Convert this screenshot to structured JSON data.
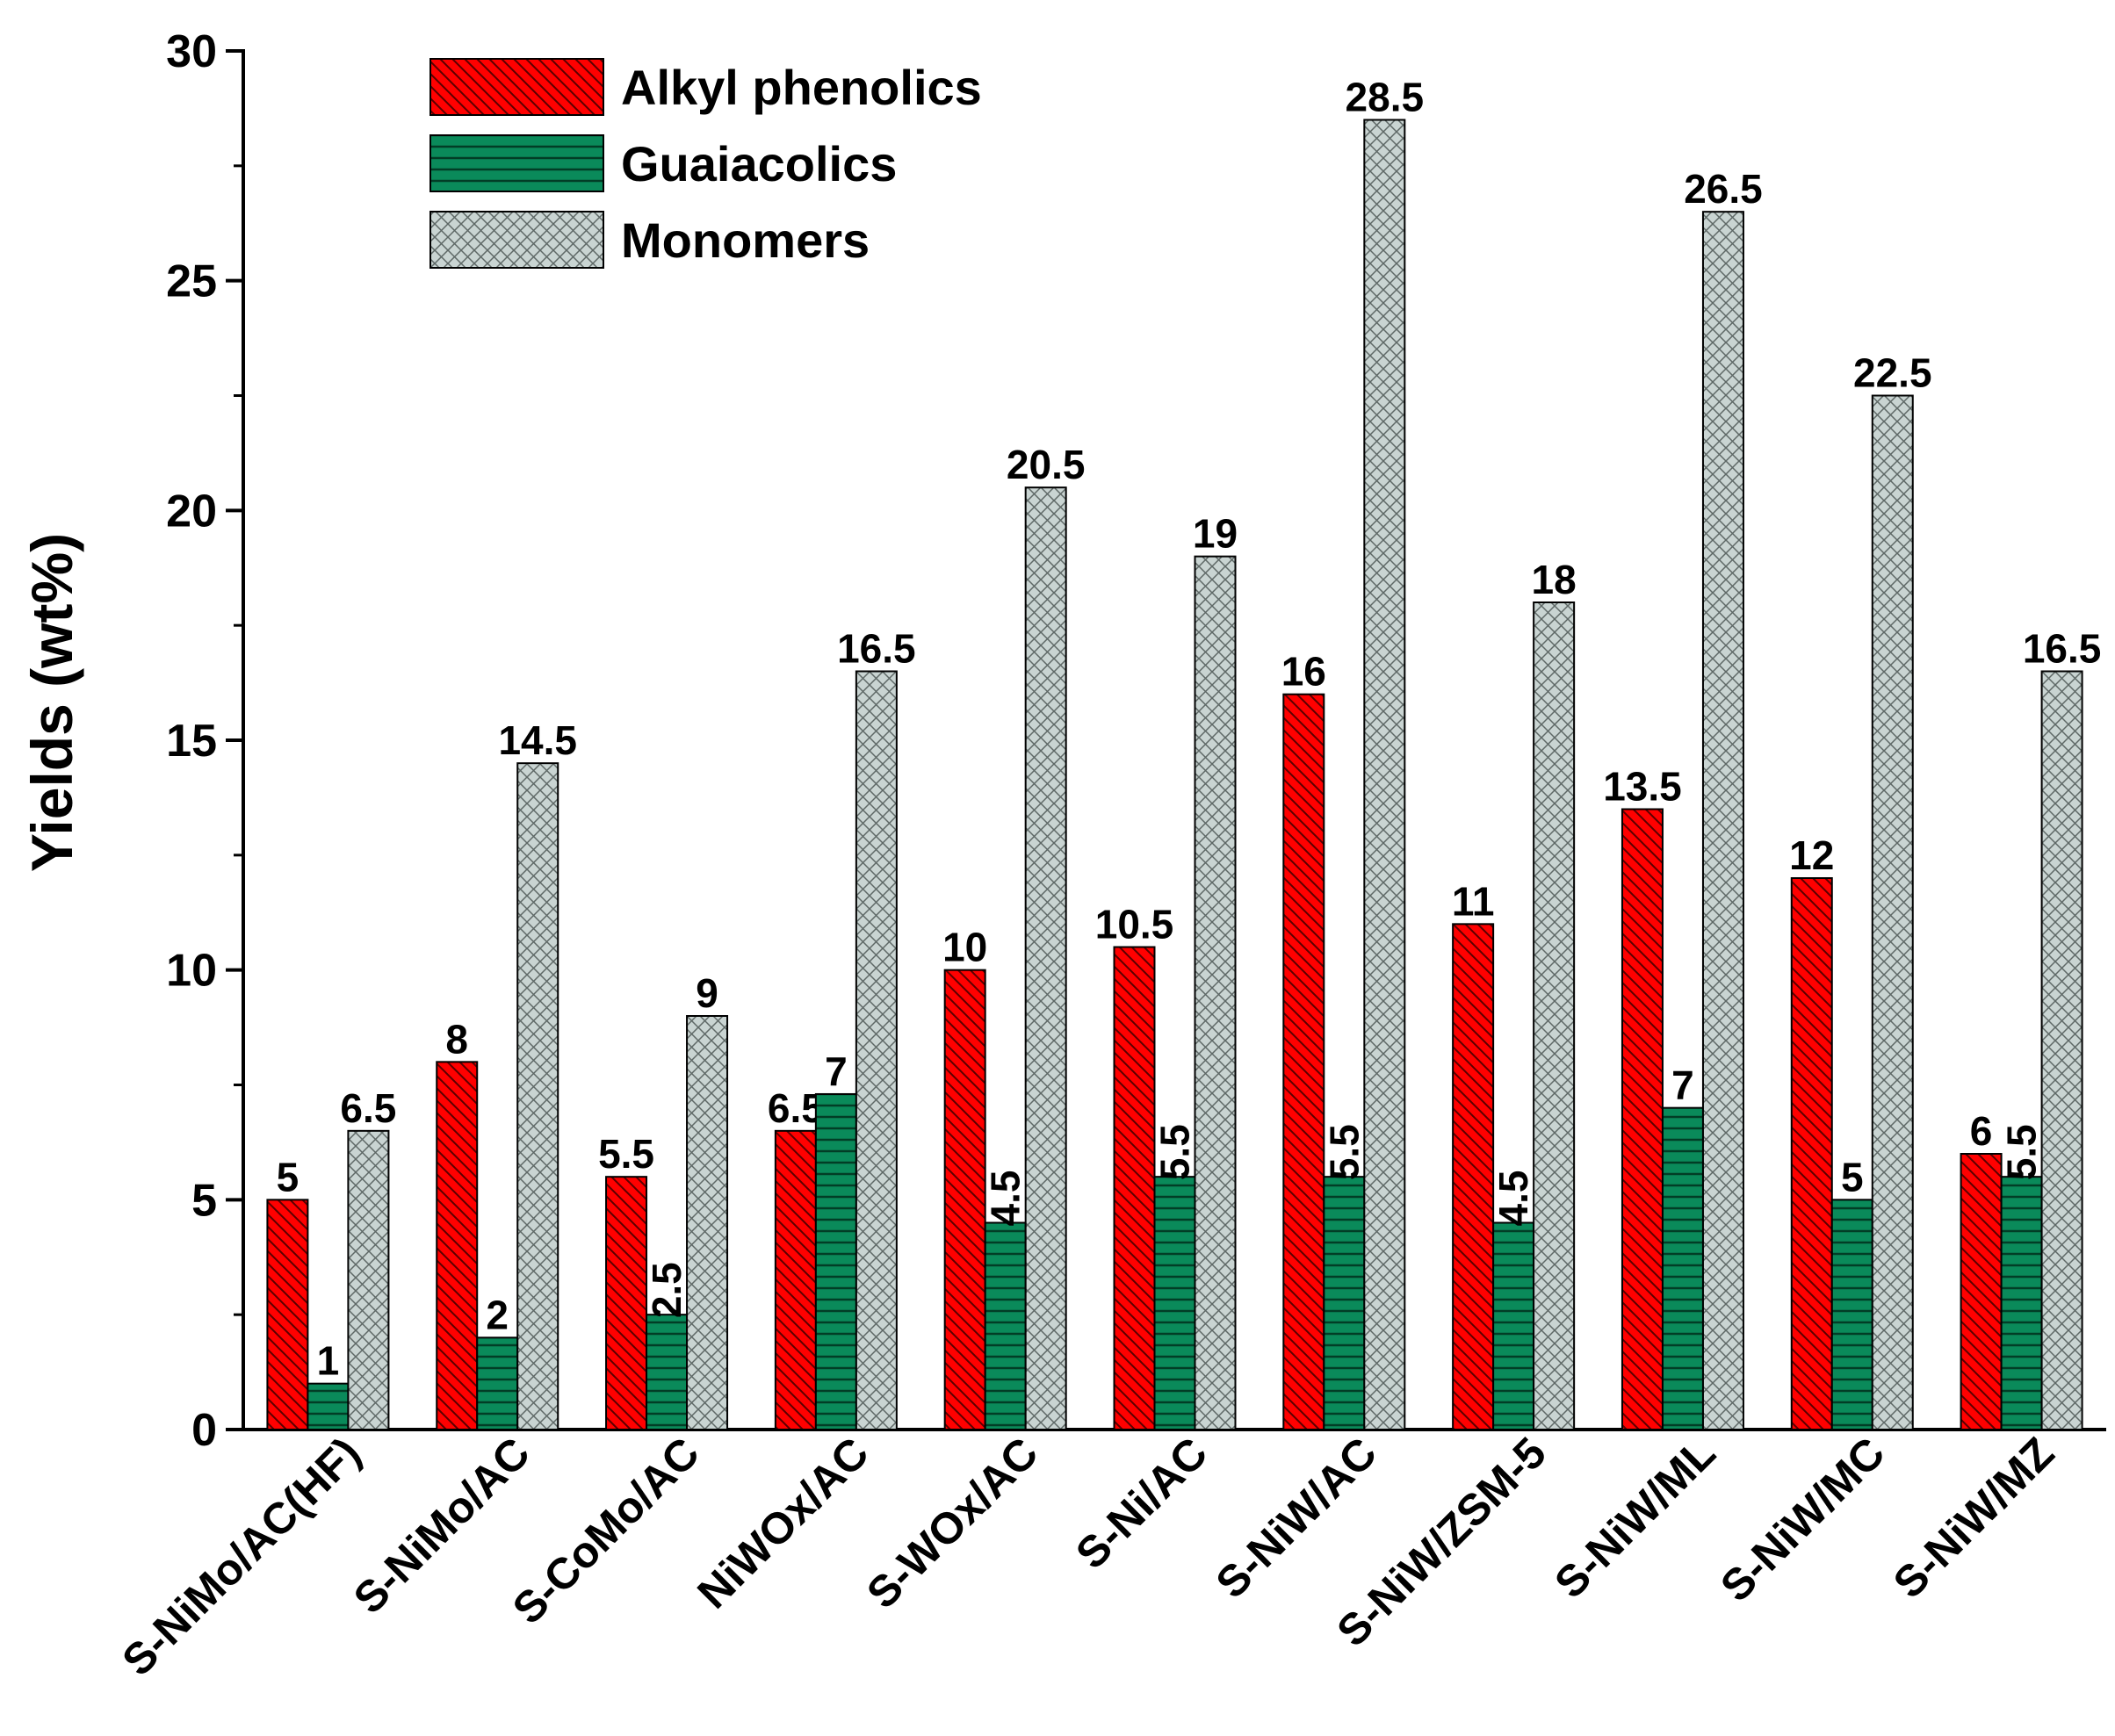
{
  "chart_data": {
    "type": "bar",
    "title": "",
    "xlabel": "",
    "ylabel": "Yields (wt%)",
    "ylim": [
      0,
      30
    ],
    "yticks": [
      0,
      5,
      10,
      15,
      20,
      25,
      30
    ],
    "grid": false,
    "legend_position": "top-left",
    "categories": [
      "S-NiMo/AC(HF)",
      "S-NiMo/AC",
      "S-CoMo/AC",
      "NiWOx/AC",
      "S-WOx/AC",
      "S-Ni/AC",
      "S-NiW/AC",
      "S-NiW/ZSM-5",
      "S-NiW/ML",
      "S-NiW/MC",
      "S-NiW/MZ"
    ],
    "series": [
      {
        "name": "Alkyl phenolics",
        "color": "#ff0000",
        "pattern": "diagonal-hatch",
        "values": [
          5,
          8,
          5.5,
          6.5,
          10,
          10.5,
          16,
          11,
          13.5,
          12,
          6
        ],
        "labels": [
          "5",
          "8",
          "5.5",
          "6.5",
          "10",
          "10.5",
          "16",
          "11",
          "13.5",
          "12",
          "6"
        ]
      },
      {
        "name": "Guaiacolics",
        "color": "#0a8a5a",
        "pattern": "horizontal-lines",
        "values": [
          1,
          2,
          2.5,
          7.3,
          4.5,
          5.5,
          5.5,
          4.5,
          7,
          5,
          5.5
        ],
        "labels": [
          "1",
          "2",
          "2.5",
          "7",
          "4.5",
          "5.5",
          "5.5",
          "4.5",
          "7",
          "5",
          "5.5"
        ]
      },
      {
        "name": "Monomers",
        "color": "#c9d4d2",
        "pattern": "crosshatch",
        "values": [
          6.5,
          14.5,
          9,
          16.5,
          20.5,
          19,
          28.5,
          18,
          26.5,
          22.5,
          16.5
        ],
        "labels": [
          "6.5",
          "14.5",
          "9",
          "16.5",
          "20.5",
          "19",
          "28.5",
          "18",
          "26.5",
          "22.5",
          "16.5"
        ]
      }
    ]
  }
}
